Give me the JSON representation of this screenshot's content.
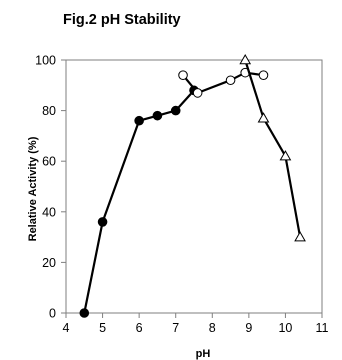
{
  "chart_data": {
    "type": "line",
    "title": "Fig.2 pH Stability",
    "xlabel": "pH",
    "ylabel": "Relative Activity (%)",
    "xlim": [
      4,
      11
    ],
    "ylim": [
      0,
      100
    ],
    "xticks": [
      4,
      5,
      6,
      7,
      8,
      9,
      10,
      11
    ],
    "yticks": [
      0,
      20,
      40,
      60,
      80,
      100
    ],
    "grid": false,
    "series": [
      {
        "marker": "filled-circle",
        "x": [
          4.5,
          5.0,
          6.0,
          6.5,
          7.0,
          7.5
        ],
        "y": [
          0,
          36,
          76,
          78,
          80,
          88
        ]
      },
      {
        "marker": "open-circle",
        "x": [
          7.2,
          7.6,
          8.5,
          8.9,
          9.4
        ],
        "y": [
          94,
          87,
          92,
          95,
          94
        ]
      },
      {
        "marker": "open-triangle",
        "x": [
          8.9,
          9.4,
          10.0,
          10.4
        ],
        "y": [
          100,
          77,
          62,
          30
        ]
      }
    ]
  }
}
